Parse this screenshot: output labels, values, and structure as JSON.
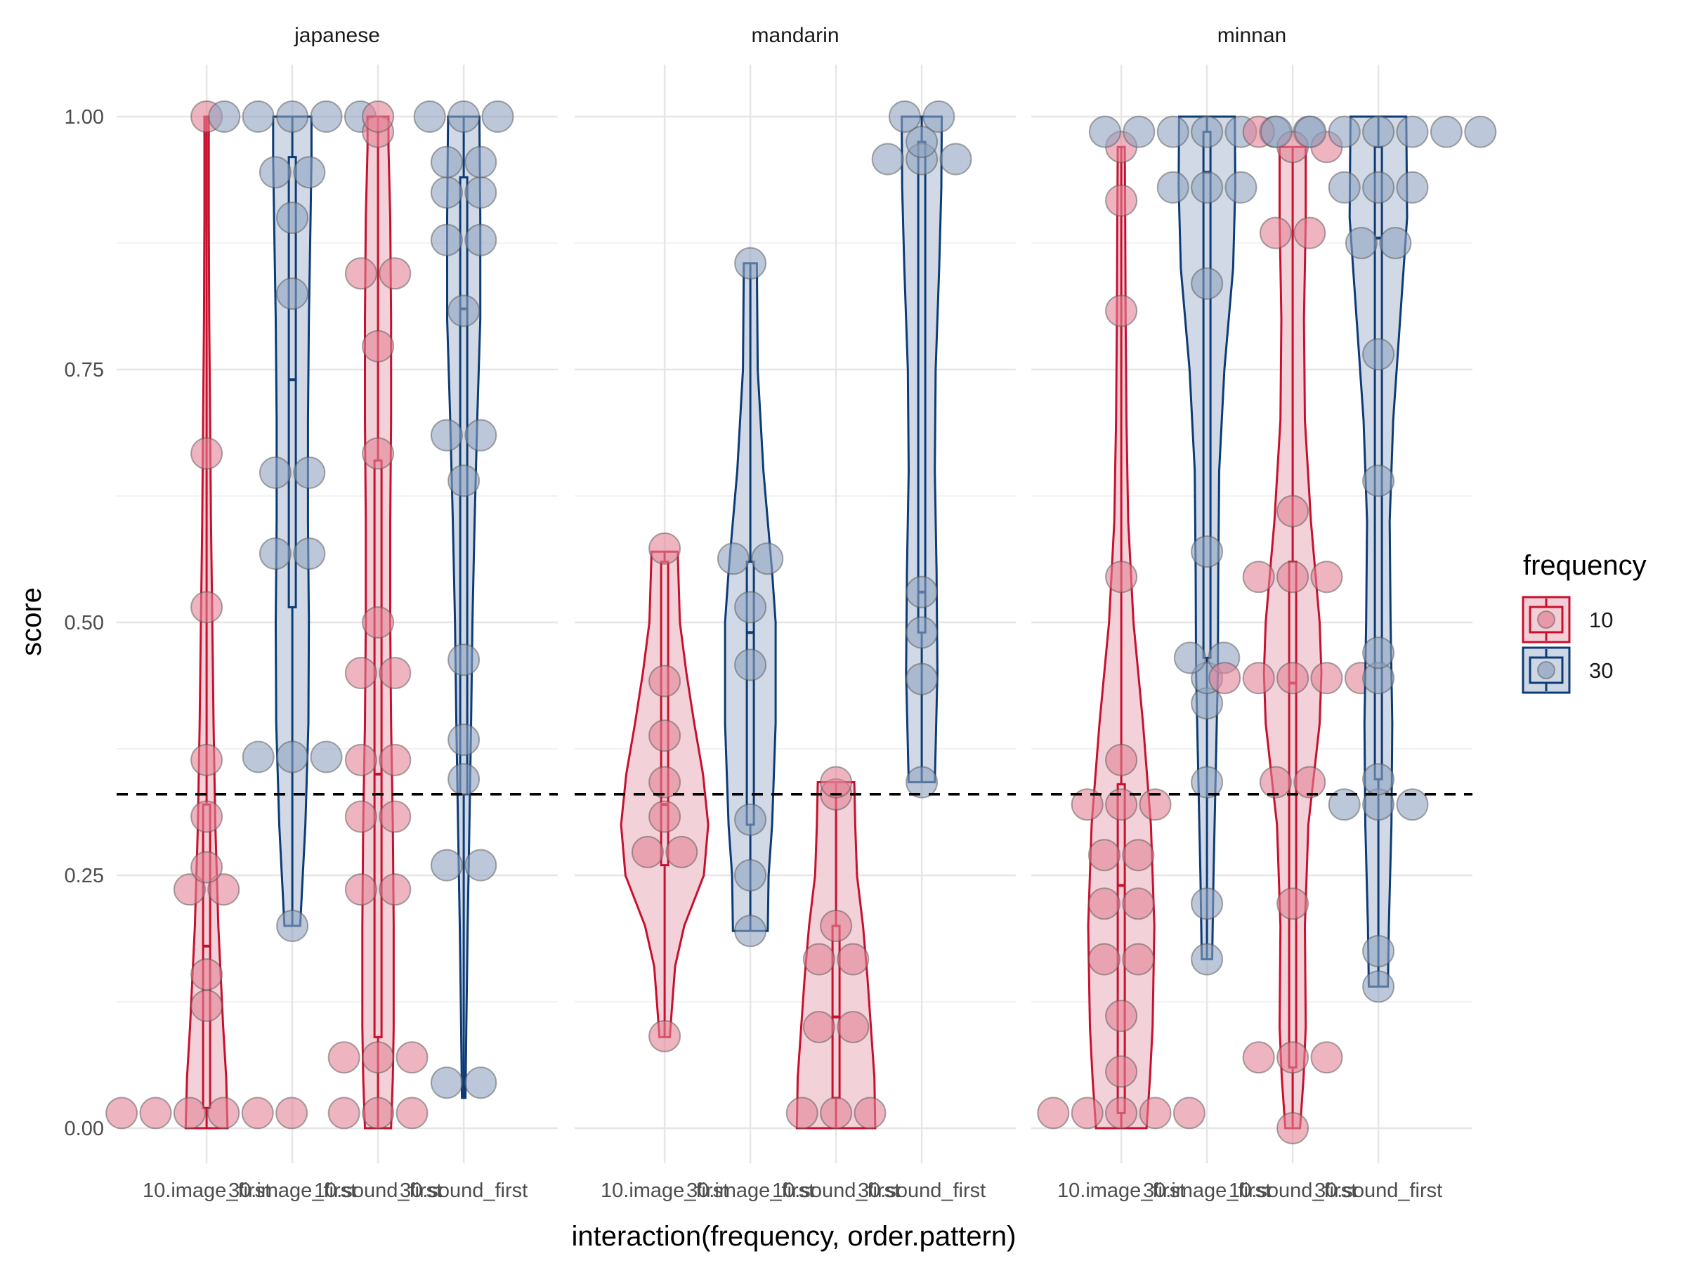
{
  "chart_data": {
    "type": "violin",
    "xlabel": "interaction(frequency, order.pattern)",
    "ylabel": "score",
    "ylim": [
      -0.06,
      1.05
    ],
    "y_ticks": [
      "0.00",
      "0.25",
      "0.50",
      "0.75",
      "1.00"
    ],
    "y_tick_values": [
      0,
      0.25,
      0.5,
      0.75,
      1
    ],
    "reference_line": {
      "y": 0.33,
      "style": "dashed"
    },
    "grid": true,
    "legend": {
      "title": "frequency",
      "position": "right",
      "entries": [
        {
          "label": "10",
          "color": "#c8102e"
        },
        {
          "label": "30",
          "color": "#0c3b76"
        }
      ]
    },
    "colors": {
      "10": "#c8102e",
      "30": "#0c3b76",
      "fill_10": "#f2cfd6",
      "fill_30": "#cdd7e4",
      "point_10": "#e38296",
      "point_30": "#8fa3bf"
    },
    "categories": [
      "10.image_first",
      "30.image_first",
      "10.sound_first",
      "30.sound_first"
    ],
    "panels": [
      {
        "name": "japanese",
        "groups": [
          {
            "freq": "10",
            "category": "10.image_first",
            "min": 0,
            "q1": 0.02,
            "median": 0.18,
            "q3": 0.32,
            "max": 1.0,
            "points": [
              1.0,
              0.667,
              0.515,
              0.364,
              0.308,
              0.258,
              0.236,
              0.236,
              0.152,
              0.121,
              0.015,
              0.015,
              0.015,
              0.015,
              0.015,
              0.015
            ],
            "violin": [
              [
                0,
                0.48
              ],
              [
                0.05,
                0.45
              ],
              [
                0.1,
                0.38
              ],
              [
                0.2,
                0.27
              ],
              [
                0.3,
                0.2
              ],
              [
                0.4,
                0.16
              ],
              [
                0.5,
                0.13
              ],
              [
                0.6,
                0.1
              ],
              [
                0.7,
                0.08
              ],
              [
                0.8,
                0.06
              ],
              [
                0.9,
                0.05
              ],
              [
                0.96,
                0.05
              ],
              [
                1.0,
                0.05
              ]
            ]
          },
          {
            "freq": "30",
            "category": "30.image_first",
            "min": 0.2,
            "q1": 0.515,
            "median": 0.74,
            "q3": 0.96,
            "max": 1.0,
            "points": [
              1.0,
              1.0,
              1.0,
              1.0,
              1.0,
              0.945,
              0.945,
              0.9,
              0.825,
              0.648,
              0.648,
              0.568,
              0.568,
              0.367,
              0.367,
              0.367,
              0.2
            ],
            "violin": [
              [
                0.2,
                0.18
              ],
              [
                0.3,
                0.3
              ],
              [
                0.4,
                0.37
              ],
              [
                0.5,
                0.38
              ],
              [
                0.6,
                0.36
              ],
              [
                0.7,
                0.36
              ],
              [
                0.8,
                0.38
              ],
              [
                0.9,
                0.42
              ],
              [
                0.96,
                0.44
              ],
              [
                1.0,
                0.44
              ]
            ]
          },
          {
            "freq": "10",
            "category": "10.sound_first",
            "min": 0,
            "q1": 0.09,
            "median": 0.35,
            "q3": 0.66,
            "max": 1.0,
            "points": [
              1.0,
              0.985,
              0.845,
              0.845,
              0.773,
              0.667,
              0.5,
              0.45,
              0.45,
              0.364,
              0.364,
              0.308,
              0.308,
              0.236,
              0.236,
              0.07,
              0.07,
              0.07,
              0.015,
              0.015,
              0.015
            ],
            "violin": [
              [
                0,
                0.3
              ],
              [
                0.05,
                0.34
              ],
              [
                0.1,
                0.36
              ],
              [
                0.2,
                0.36
              ],
              [
                0.3,
                0.34
              ],
              [
                0.4,
                0.3
              ],
              [
                0.5,
                0.28
              ],
              [
                0.6,
                0.28
              ],
              [
                0.7,
                0.3
              ],
              [
                0.8,
                0.3
              ],
              [
                0.9,
                0.28
              ],
              [
                0.97,
                0.24
              ],
              [
                1.0,
                0.24
              ]
            ]
          },
          {
            "freq": "30",
            "category": "30.sound_first",
            "min": 0.03,
            "q1": 0.33,
            "median": 0.81,
            "q3": 0.94,
            "max": 1.0,
            "points": [
              1.0,
              1.0,
              1.0,
              0.955,
              0.955,
              0.925,
              0.925,
              0.878,
              0.878,
              0.808,
              0.685,
              0.685,
              0.64,
              0.463,
              0.384,
              0.345,
              0.26,
              0.26,
              0.045,
              0.045
            ],
            "violin": [
              [
                0.03,
                0.04
              ],
              [
                0.1,
                0.06
              ],
              [
                0.2,
                0.09
              ],
              [
                0.3,
                0.13
              ],
              [
                0.4,
                0.17
              ],
              [
                0.5,
                0.2
              ],
              [
                0.6,
                0.25
              ],
              [
                0.7,
                0.31
              ],
              [
                0.8,
                0.38
              ],
              [
                0.9,
                0.38
              ],
              [
                1.0,
                0.36
              ]
            ]
          }
        ]
      },
      {
        "name": "mandarin",
        "groups": [
          {
            "freq": "10",
            "category": "10.image_first",
            "min": 0.09,
            "q1": 0.26,
            "median": 0.32,
            "q3": 0.56,
            "max": 0.57,
            "points": [
              0.573,
              0.442,
              0.388,
              0.342,
              0.308,
              0.273,
              0.273,
              0.091
            ],
            "violin": [
              [
                0.09,
                0.12
              ],
              [
                0.12,
                0.17
              ],
              [
                0.16,
                0.24
              ],
              [
                0.2,
                0.45
              ],
              [
                0.25,
                0.9
              ],
              [
                0.3,
                1.0
              ],
              [
                0.35,
                0.88
              ],
              [
                0.4,
                0.68
              ],
              [
                0.45,
                0.5
              ],
              [
                0.5,
                0.35
              ],
              [
                0.57,
                0.3
              ]
            ]
          },
          {
            "freq": "30",
            "category": "30.image_first",
            "min": 0.195,
            "q1": 0.3,
            "median": 0.49,
            "q3": 0.56,
            "max": 0.855,
            "points": [
              0.855,
              0.563,
              0.563,
              0.515,
              0.458,
              0.305,
              0.25,
              0.195
            ],
            "violin": [
              [
                0.195,
                0.4
              ],
              [
                0.25,
                0.42
              ],
              [
                0.3,
                0.5
              ],
              [
                0.4,
                0.58
              ],
              [
                0.5,
                0.58
              ],
              [
                0.55,
                0.5
              ],
              [
                0.65,
                0.3
              ],
              [
                0.75,
                0.17
              ],
              [
                0.855,
                0.15
              ]
            ]
          },
          {
            "freq": "10",
            "category": "10.sound_first",
            "min": 0,
            "q1": 0.03,
            "median": 0.11,
            "q3": 0.2,
            "max": 0.342,
            "points": [
              0.342,
              0.33,
              0.2,
              0.167,
              0.167,
              0.1,
              0.1,
              0.015,
              0.015,
              0.015
            ],
            "violin": [
              [
                0,
                0.9
              ],
              [
                0.05,
                0.88
              ],
              [
                0.1,
                0.8
              ],
              [
                0.15,
                0.72
              ],
              [
                0.2,
                0.62
              ],
              [
                0.25,
                0.48
              ],
              [
                0.3,
                0.44
              ],
              [
                0.342,
                0.42
              ]
            ]
          },
          {
            "freq": "30",
            "category": "30.sound_first",
            "min": 0.342,
            "q1": 0.49,
            "median": 0.53,
            "q3": 0.975,
            "max": 1.0,
            "points": [
              1.0,
              1.0,
              0.975,
              0.958,
              0.958,
              0.958,
              0.53,
              0.49,
              0.444,
              0.342
            ],
            "violin": [
              [
                0.342,
                0.3
              ],
              [
                0.45,
                0.36
              ],
              [
                0.55,
                0.34
              ],
              [
                0.65,
                0.3
              ],
              [
                0.75,
                0.32
              ],
              [
                0.85,
                0.4
              ],
              [
                0.93,
                0.45
              ],
              [
                1.0,
                0.46
              ]
            ]
          }
        ]
      },
      {
        "name": "minnan",
        "groups": [
          {
            "freq": "10",
            "category": "10.image_first",
            "min": 0,
            "q1": 0.015,
            "median": 0.24,
            "q3": 0.34,
            "max": 0.97,
            "points": [
              0.97,
              0.917,
              0.808,
              0.545,
              0.364,
              0.32,
              0.32,
              0.32,
              0.27,
              0.27,
              0.222,
              0.222,
              0.167,
              0.167,
              0.111,
              0.056,
              0.015,
              0.015,
              0.015,
              0.015,
              0.015
            ],
            "violin": [
              [
                0,
                0.58
              ],
              [
                0.05,
                0.66
              ],
              [
                0.1,
                0.72
              ],
              [
                0.2,
                0.76
              ],
              [
                0.3,
                0.68
              ],
              [
                0.4,
                0.5
              ],
              [
                0.5,
                0.28
              ],
              [
                0.6,
                0.16
              ],
              [
                0.7,
                0.12
              ],
              [
                0.8,
                0.1
              ],
              [
                0.9,
                0.09
              ],
              [
                0.97,
                0.08
              ]
            ]
          },
          {
            "freq": "30",
            "category": "30.image_first",
            "min": 0.167,
            "q1": 0.465,
            "median": 0.945,
            "q3": 0.985,
            "max": 1.0,
            "points": [
              0.985,
              0.985,
              0.985,
              0.985,
              0.985,
              0.985,
              0.985,
              0.93,
              0.93,
              0.93,
              0.835,
              0.57,
              0.465,
              0.465,
              0.445,
              0.42,
              0.342,
              0.222,
              0.167
            ],
            "violin": [
              [
                0.167,
                0.12
              ],
              [
                0.25,
                0.15
              ],
              [
                0.35,
                0.2
              ],
              [
                0.45,
                0.25
              ],
              [
                0.55,
                0.26
              ],
              [
                0.65,
                0.28
              ],
              [
                0.75,
                0.4
              ],
              [
                0.85,
                0.6
              ],
              [
                0.93,
                0.65
              ],
              [
                1.0,
                0.64
              ]
            ]
          },
          {
            "freq": "10",
            "category": "10.sound_first",
            "min": 0,
            "q1": 0.06,
            "median": 0.44,
            "q3": 0.56,
            "max": 0.97,
            "points": [
              0.985,
              0.97,
              0.97,
              0.885,
              0.885,
              0.61,
              0.545,
              0.545,
              0.545,
              0.445,
              0.445,
              0.445,
              0.445,
              0.445,
              0.342,
              0.342,
              0.222,
              0.07,
              0.07,
              0.07,
              0.0
            ],
            "violin": [
              [
                0,
                0.17
              ],
              [
                0.05,
                0.25
              ],
              [
                0.1,
                0.3
              ],
              [
                0.2,
                0.28
              ],
              [
                0.3,
                0.36
              ],
              [
                0.4,
                0.62
              ],
              [
                0.45,
                0.66
              ],
              [
                0.5,
                0.62
              ],
              [
                0.6,
                0.42
              ],
              [
                0.7,
                0.28
              ],
              [
                0.8,
                0.26
              ],
              [
                0.9,
                0.3
              ],
              [
                0.97,
                0.3
              ]
            ]
          },
          {
            "freq": "30",
            "category": "30.sound_first",
            "min": 0.14,
            "q1": 0.345,
            "median": 0.88,
            "q3": 0.97,
            "max": 1.0,
            "points": [
              0.985,
              0.985,
              0.985,
              0.985,
              0.985,
              0.985,
              0.985,
              0.93,
              0.93,
              0.93,
              0.875,
              0.875,
              0.765,
              0.64,
              0.47,
              0.445,
              0.345,
              0.32,
              0.32,
              0.32,
              0.175,
              0.14
            ],
            "violin": [
              [
                0.14,
                0.22
              ],
              [
                0.2,
                0.24
              ],
              [
                0.3,
                0.3
              ],
              [
                0.4,
                0.32
              ],
              [
                0.5,
                0.28
              ],
              [
                0.6,
                0.26
              ],
              [
                0.7,
                0.34
              ],
              [
                0.8,
                0.5
              ],
              [
                0.9,
                0.66
              ],
              [
                1.0,
                0.64
              ]
            ]
          }
        ]
      }
    ]
  }
}
